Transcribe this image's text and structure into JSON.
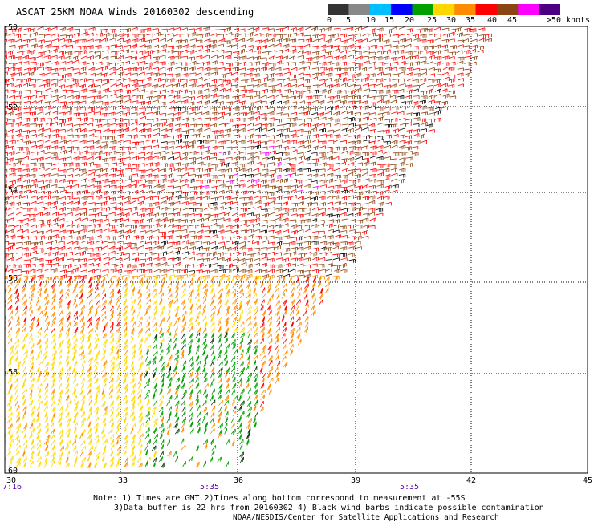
{
  "title": "ASCAT 25KM NOAA Winds 20160302 descending",
  "color_scale": {
    "labels": [
      "0",
      "5",
      "10",
      "15",
      "20",
      "25",
      "30",
      "35",
      "40",
      "45",
      ">50 knots"
    ],
    "colors": [
      "#333333",
      "#888888",
      "#00bfff",
      "#0000ff",
      "#00a000",
      "#ffd700",
      "#ff8c00",
      "#ff0000",
      "#8b4513",
      "#ff00ff",
      "#4b0082"
    ]
  },
  "axes": {
    "lat_labels": [
      "-50",
      "-52",
      "-54",
      "-56",
      "-58",
      "-60"
    ],
    "lon_labels": [
      "30",
      "33",
      "36",
      "39",
      "42",
      "45"
    ],
    "lat_range": [
      -60,
      -50
    ],
    "lon_range": [
      30,
      45
    ]
  },
  "time_labels": [
    "7:16",
    "5:35",
    "5:35"
  ],
  "notes": {
    "line1": "Note: 1) Times are GMT 2)Times along bottom correspond to measurement at -55S",
    "line2": "3)Data buffer is 22 hrs from 20160302 4) Black wind barbs indicate possible contamination",
    "line3": "NOAA/NESDIS/Center for Satellite Applications and Research"
  }
}
